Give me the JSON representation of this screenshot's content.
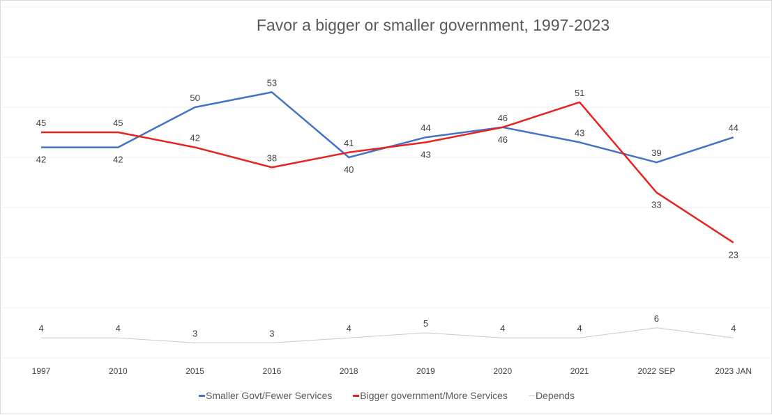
{
  "chart_data": {
    "type": "line",
    "title": "Favor a bigger or smaller government, 1997-2023",
    "categories": [
      "1997",
      "2010",
      "2015",
      "2016",
      "2018",
      "2019",
      "2020",
      "2021",
      "2022 SEP",
      "2023  JAN"
    ],
    "series": [
      {
        "name": "Smaller Govt/Fewer Services",
        "color": "#4472c4",
        "values": [
          42,
          42,
          50,
          53,
          40,
          44,
          46,
          43,
          39,
          44
        ]
      },
      {
        "name": "Bigger government/More Services",
        "color": "#e8231f",
        "values": [
          45,
          45,
          42,
          38,
          41,
          43,
          46,
          51,
          33,
          23
        ]
      },
      {
        "name": "Depends",
        "color": "#c8c8c8",
        "values": [
          4,
          4,
          3,
          3,
          4,
          5,
          4,
          4,
          6,
          4
        ]
      }
    ],
    "ylim": [
      0,
      70
    ],
    "grid": true,
    "legend": "bottom",
    "data_labels": true
  }
}
